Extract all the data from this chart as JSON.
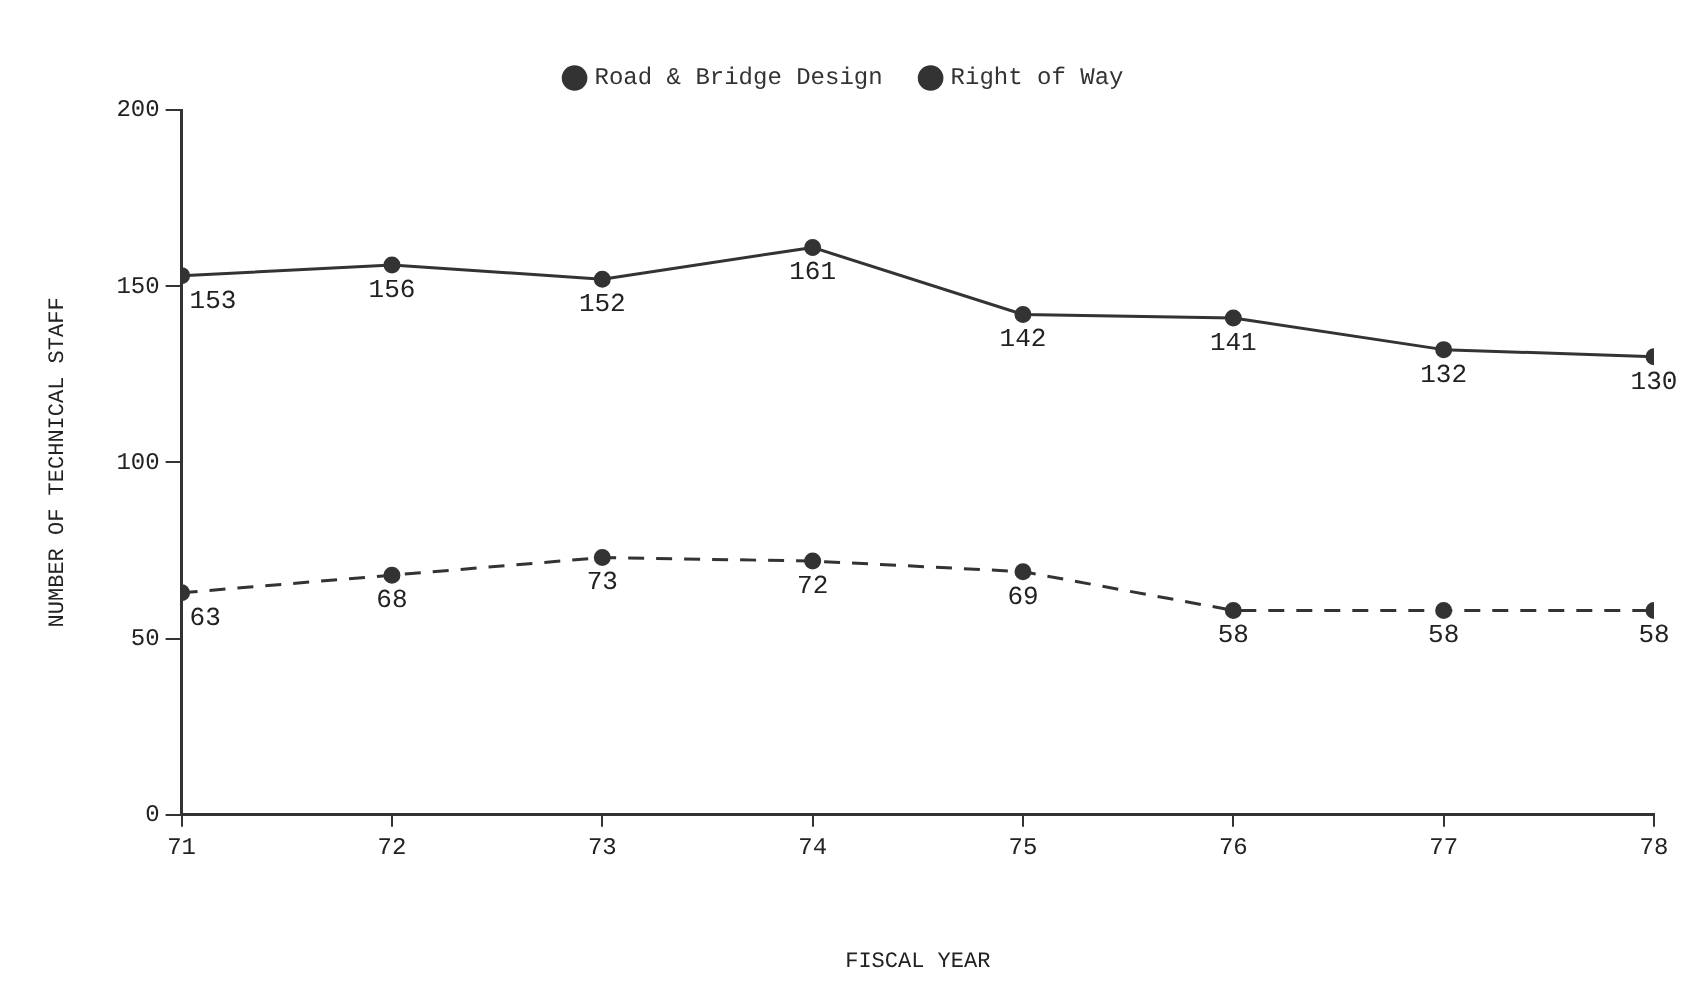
{
  "chart_data": {
    "type": "line",
    "xlabel": "FISCAL YEAR",
    "ylabel": "NUMBER OF TECHNICAL STAFF",
    "x": [
      71,
      72,
      73,
      74,
      75,
      76,
      77,
      78
    ],
    "series": [
      {
        "name": "Road & Bridge Design",
        "color": "#333333",
        "line_style": "solid",
        "values": [
          153,
          156,
          152,
          161,
          142,
          141,
          132,
          130
        ]
      },
      {
        "name": "Right of Way",
        "color": "#333333",
        "line_style": "dashed",
        "values": [
          63,
          68,
          73,
          72,
          69,
          58,
          58,
          58
        ]
      }
    ],
    "xlim": [
      71,
      78
    ],
    "xticks": [
      71,
      72,
      73,
      74,
      75,
      76,
      77,
      78
    ],
    "ylim": [
      0,
      200
    ],
    "yticks": [
      0,
      50,
      100,
      150,
      200
    ],
    "grid": false,
    "legend": "top",
    "marker": "circle",
    "data_labels": true
  }
}
